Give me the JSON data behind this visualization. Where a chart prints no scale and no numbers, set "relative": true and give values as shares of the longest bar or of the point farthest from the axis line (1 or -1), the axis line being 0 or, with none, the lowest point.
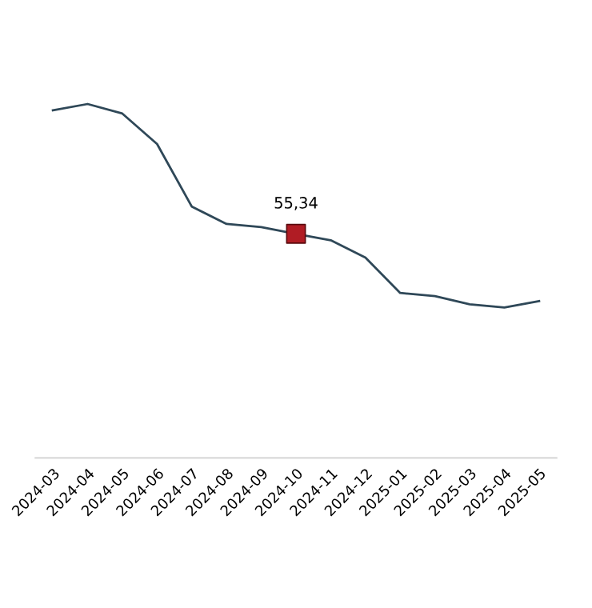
{
  "chart_data": {
    "type": "line",
    "relative": true,
    "categories": [
      "2024-03",
      "2024-04",
      "2024-05",
      "2024-06",
      "2024-07",
      "2024-08",
      "2024-09",
      "2024-10",
      "2024-11",
      "2024-12",
      "2025-01",
      "2025-02",
      "2025-03",
      "2025-04",
      "2025-05"
    ],
    "series": [
      {
        "color": "#2f4858",
        "marker": "none",
        "values": [
          0.982,
          1,
          0.973,
          0.887,
          0.71,
          0.661,
          0.652,
          0.633,
          0.615,
          0.566,
          0.466,
          0.457,
          0.434,
          0.425,
          0.443
        ]
      },
      {
        "type": "scatter",
        "color": "#b01c24",
        "marker": "square",
        "values": [
          null,
          null,
          null,
          null,
          null,
          null,
          null,
          0.633,
          null,
          null,
          null,
          null,
          null,
          null,
          null
        ]
      }
    ],
    "annotations": [
      {
        "text": "55,34",
        "x": "2024-10",
        "y": 0.633
      }
    ],
    "grid": false,
    "legend": false
  }
}
